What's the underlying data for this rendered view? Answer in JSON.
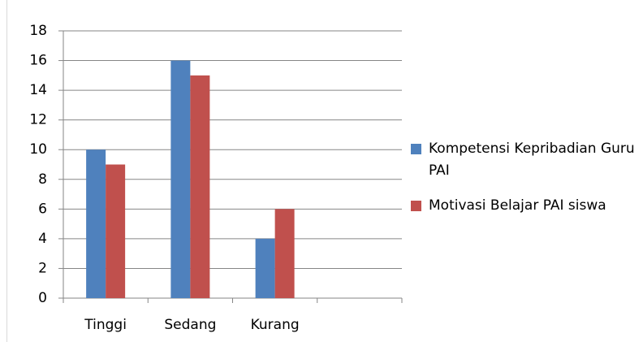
{
  "chart_data": {
    "type": "bar",
    "categories": [
      "Tinggi",
      "Sedang",
      "Kurang",
      null
    ],
    "series": [
      {
        "name": "Kompetensi Kepribadian Guru PAI",
        "color": "#4f81bd",
        "values": [
          10,
          16,
          4,
          null
        ]
      },
      {
        "name": "Motivasi Belajar PAI siswa",
        "color": "#c0504d",
        "values": [
          9,
          15,
          6,
          null
        ]
      }
    ],
    "ylim": [
      0,
      18
    ],
    "yticks": [
      0,
      2,
      4,
      6,
      8,
      10,
      12,
      14,
      16,
      18
    ],
    "grid": true,
    "legend": "right"
  }
}
